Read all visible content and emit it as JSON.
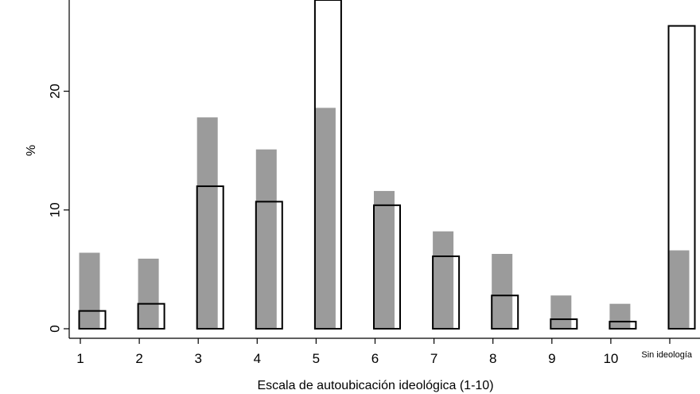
{
  "chart_data": {
    "type": "bar",
    "title": "",
    "xlabel": "Escala de autoubicación ideológica (1-10)",
    "ylabel": "%",
    "categories": [
      "1",
      "2",
      "3",
      "4",
      "5",
      "6",
      "7",
      "8",
      "9",
      "10",
      "Sin ideología"
    ],
    "yticks": [
      "0",
      "10",
      "20"
    ],
    "ylim": [
      0,
      28
    ],
    "grid": false,
    "legend": "none",
    "series": [
      {
        "values": [
          6.4,
          5.9,
          17.8,
          15.1,
          18.6,
          11.6,
          8.2,
          6.3,
          2.8,
          2.1,
          6.6
        ],
        "color": "#9b9b9b",
        "style": "filled"
      },
      {
        "values": [
          1.5,
          2.1,
          12.0,
          10.7,
          28.0,
          10.4,
          6.1,
          2.8,
          0.8,
          0.6,
          25.5
        ],
        "color": "#000000",
        "style": "outline"
      }
    ]
  }
}
